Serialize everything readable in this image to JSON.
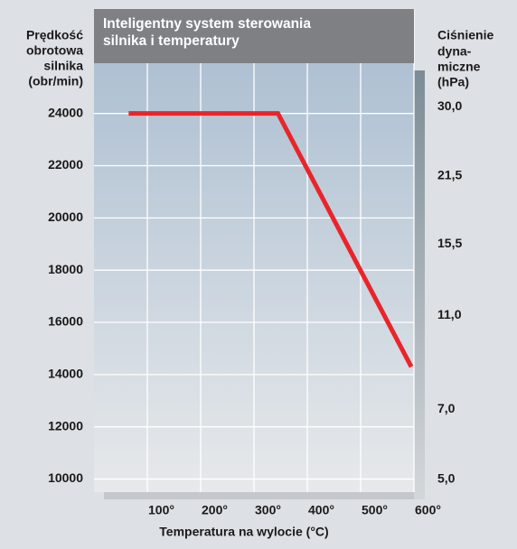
{
  "chart_data": {
    "type": "line",
    "title_lines": [
      "Inteligentny system sterowania",
      "silnika i temperatury"
    ],
    "y_label_lines": [
      "Prędkość",
      "obrotowa",
      "silnika",
      "(obr/min)"
    ],
    "y2_label_lines": [
      "Ciśnienie",
      "dyna-",
      "miczne",
      "(hPa)"
    ],
    "x_label": "Temperatura na wylocie (°C)",
    "x": [
      65,
      345,
      595
    ],
    "series": [
      {
        "name": null,
        "color": "#e8252b",
        "values": [
          24000,
          24000,
          14300
        ]
      }
    ],
    "xlim": [
      0,
      600
    ],
    "xticks": [
      {
        "value": 100,
        "label": "100°"
      },
      {
        "value": 200,
        "label": "200°"
      },
      {
        "value": 300,
        "label": "300°"
      },
      {
        "value": 400,
        "label": "400°"
      },
      {
        "value": 500,
        "label": "500°"
      },
      {
        "value": 600,
        "label": "600°"
      }
    ],
    "ylim": [
      9500,
      28000
    ],
    "yticks": [
      10000,
      12000,
      14000,
      16000,
      18000,
      20000,
      22000,
      24000
    ],
    "y2lim": [
      4.7,
      48
    ],
    "y2log": true,
    "y2ticks": [
      {
        "value": 30,
        "label": "30,0"
      },
      {
        "value": 21.5,
        "label": "21,5"
      },
      {
        "value": 15.5,
        "label": "15,5"
      },
      {
        "value": 11,
        "label": "11,0"
      },
      {
        "value": 7,
        "label": "7,0"
      },
      {
        "value": 5,
        "label": "5,0"
      }
    ],
    "grid": true
  }
}
